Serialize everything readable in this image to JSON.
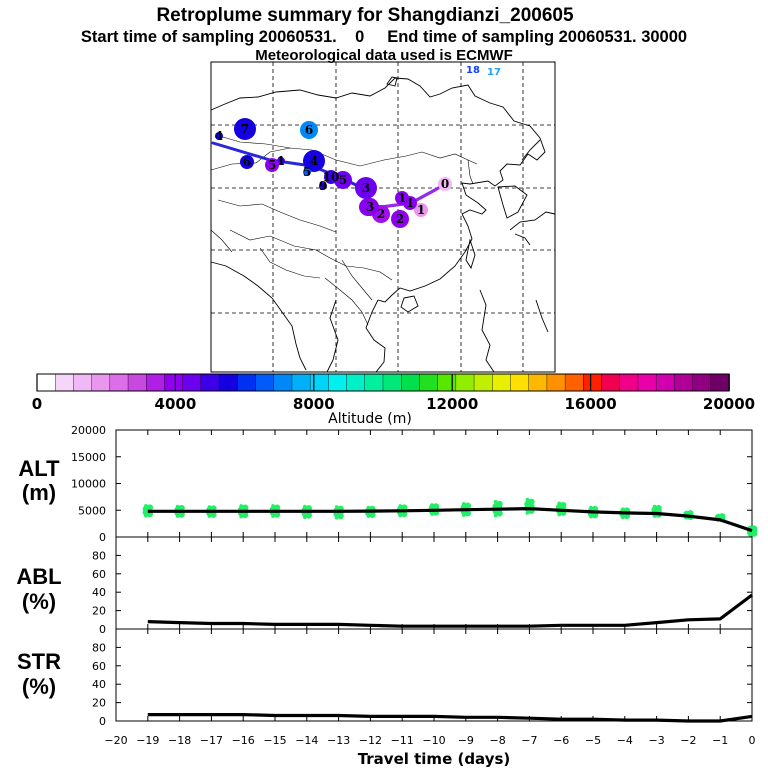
{
  "header": {
    "title": "Retroplume summary for Shangdianzi_200605",
    "subtitle": "Start time of sampling 20060531.    0     End time of sampling 20060531. 30000",
    "met_line": "Meteorological data used is ECMWF"
  },
  "colorbar": {
    "colors": [
      "#ffffff",
      "#f6d6f8",
      "#f0b8f4",
      "#e896ee",
      "#dc6ee8",
      "#c848e0",
      "#b020e4",
      "#9000ee",
      "#6e00f0",
      "#3c00e8",
      "#1400e0",
      "#0030f0",
      "#005cf8",
      "#0088f8",
      "#00b0f8",
      "#00d4f8",
      "#00f0f0",
      "#00f0c8",
      "#00f0a0",
      "#00e878",
      "#00e04c",
      "#20e020",
      "#58e800",
      "#90ee00",
      "#c0f000",
      "#e8f000",
      "#ffe000",
      "#ffb800",
      "#ff9000",
      "#ff6000",
      "#ff2000",
      "#f00050",
      "#f00088",
      "#e800a8",
      "#d000b0",
      "#b00098",
      "#900080",
      "#700068"
    ],
    "major_ticks": [
      0,
      4000,
      8000,
      12000,
      16000,
      20000
    ],
    "tick_labels": [
      "0",
      "4000",
      "8000",
      "12000",
      "16000",
      "20000"
    ],
    "label": "Altitude  (m)"
  },
  "map": {
    "label_18": "18",
    "label_17": "17",
    "origin_label": "0",
    "points": [
      {
        "label": "0",
        "color": "#f0b8f4",
        "size": "s"
      },
      {
        "label": "1",
        "color": "#e896ee",
        "size": "s"
      },
      {
        "label": "1",
        "color": "#8800ee",
        "size": "s"
      },
      {
        "label": "1",
        "color": "#8800ee",
        "size": "s"
      },
      {
        "label": "2",
        "color": "#a010e8",
        "size": "m"
      },
      {
        "label": "2",
        "color": "#9000ee",
        "size": "m"
      },
      {
        "label": "2",
        "color": "#8800ee",
        "size": "m"
      },
      {
        "label": "3",
        "color": "#8800ee",
        "size": "m"
      },
      {
        "label": "3",
        "color": "#6e00f0",
        "size": "l"
      },
      {
        "label": "5",
        "color": "#7000f0",
        "size": "m"
      },
      {
        "label": "9",
        "color": "#2400e0",
        "size": "xs"
      },
      {
        "label": "10",
        "color": "#3c00e8",
        "size": "s"
      },
      {
        "label": "4",
        "color": "#1400e0",
        "size": "l"
      },
      {
        "label": "5",
        "color": "#005cf8",
        "size": "xs"
      },
      {
        "label": "1",
        "color": "#3c00e8",
        "size": "xs"
      },
      {
        "label": "5",
        "color": "#9000ee",
        "size": "s"
      },
      {
        "label": "6",
        "color": "#1400e0",
        "size": "s"
      },
      {
        "label": "7",
        "color": "#1400e0",
        "size": "l"
      },
      {
        "label": "6",
        "color": "#0088f8",
        "size": "m"
      },
      {
        "label": "4",
        "color": "#1400e0",
        "size": "xs"
      }
    ]
  },
  "chart_data": [
    {
      "type": "line",
      "name": "ALT",
      "panel_label_1": "ALT",
      "panel_label_2": "(m)",
      "x": [
        -19,
        -18,
        -17,
        -16,
        -15,
        -14,
        -13,
        -12,
        -11,
        -10,
        -9,
        -8,
        -7,
        -6,
        -5,
        -4,
        -3,
        -2,
        -1,
        0
      ],
      "values": [
        4800,
        4800,
        4800,
        4800,
        4800,
        4800,
        4800,
        4850,
        4900,
        5000,
        5100,
        5200,
        5300,
        5000,
        4700,
        4500,
        4400,
        3900,
        3200,
        1200
      ],
      "scatter_spread": [
        [
          4000,
          5800
        ],
        [
          3900,
          5700
        ],
        [
          3900,
          5600
        ],
        [
          3800,
          5800
        ],
        [
          3900,
          5800
        ],
        [
          3700,
          5700
        ],
        [
          3600,
          5600
        ],
        [
          3900,
          5500
        ],
        [
          4000,
          5800
        ],
        [
          4300,
          6000
        ],
        [
          4100,
          6200
        ],
        [
          4000,
          6600
        ],
        [
          4500,
          7000
        ],
        [
          4200,
          6300
        ],
        [
          3800,
          5500
        ],
        [
          3700,
          5200
        ],
        [
          3900,
          5700
        ],
        [
          3600,
          4600
        ],
        [
          3200,
          4000
        ],
        [
          400,
          1800
        ]
      ],
      "scatter_color": "#22ee66",
      "ylim": [
        0,
        20000
      ],
      "yticks": [
        0,
        5000,
        10000,
        15000,
        20000
      ],
      "ytick_labels": [
        "0",
        "5000",
        "10000",
        "15000",
        "20000"
      ],
      "xlim": [
        -20,
        0
      ]
    },
    {
      "type": "line",
      "name": "ABL",
      "panel_label_1": "ABL",
      "panel_label_2": "(%)",
      "x": [
        -19,
        -18,
        -17,
        -16,
        -15,
        -14,
        -13,
        -12,
        -11,
        -10,
        -9,
        -8,
        -7,
        -6,
        -5,
        -4,
        -3,
        -2,
        -1,
        0
      ],
      "values": [
        8,
        7,
        6,
        6,
        5,
        5,
        5,
        4,
        3,
        3,
        3,
        3,
        3,
        4,
        4,
        4,
        7,
        10,
        11,
        37
      ],
      "ylim": [
        0,
        100
      ],
      "yticks": [
        0,
        20,
        40,
        60,
        80
      ],
      "ytick_labels": [
        "0",
        "20",
        "40",
        "60",
        "80"
      ],
      "xlim": [
        -20,
        0
      ]
    },
    {
      "type": "line",
      "name": "STR",
      "panel_label_1": "STR",
      "panel_label_2": "(%)",
      "x": [
        -19,
        -18,
        -17,
        -16,
        -15,
        -14,
        -13,
        -12,
        -11,
        -10,
        -9,
        -8,
        -7,
        -6,
        -5,
        -4,
        -3,
        -2,
        -1,
        0
      ],
      "values": [
        7,
        7,
        7,
        7,
        6,
        6,
        6,
        5,
        5,
        5,
        4,
        4,
        3,
        2,
        2,
        1,
        1,
        0,
        0,
        5
      ],
      "ylim": [
        0,
        100
      ],
      "yticks": [
        0,
        20,
        40,
        60,
        80
      ],
      "ytick_labels": [
        "0",
        "20",
        "40",
        "60",
        "80"
      ],
      "xlim": [
        -20,
        0
      ],
      "xticks": [
        -20,
        -19,
        -18,
        -17,
        -16,
        -15,
        -14,
        -13,
        -12,
        -11,
        -10,
        -9,
        -8,
        -7,
        -6,
        -5,
        -4,
        -3,
        -2,
        -1,
        0
      ],
      "xtick_labels": [
        "−20",
        "−19",
        "−18",
        "−17",
        "−16",
        "−15",
        "−14",
        "−13",
        "−12",
        "−11",
        "−10",
        "−9",
        "−8",
        "−7",
        "−6",
        "−5",
        "−4",
        "−3",
        "−2",
        "−1",
        "0"
      ],
      "xlabel": "Travel time (days)"
    }
  ]
}
